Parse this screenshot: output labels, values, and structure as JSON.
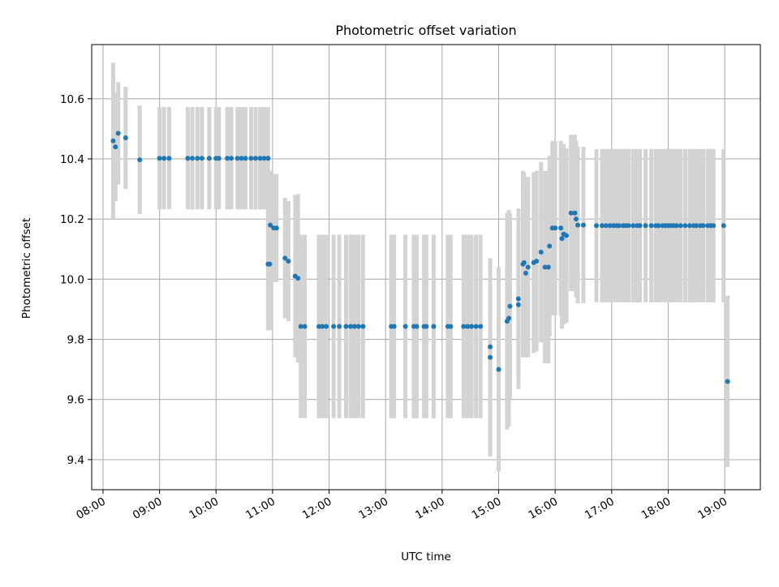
{
  "chart_data": {
    "type": "scatter",
    "title": "Photometric offset variation",
    "xlabel": "UTC time",
    "ylabel": "Photometric offset",
    "x_unit": "hours UTC",
    "xlim": [
      7.8,
      19.63
    ],
    "ylim": [
      9.3,
      10.78
    ],
    "x_ticks": [
      {
        "value": 8,
        "label": "08:00"
      },
      {
        "value": 9,
        "label": "09:00"
      },
      {
        "value": 10,
        "label": "10:00"
      },
      {
        "value": 11,
        "label": "11:00"
      },
      {
        "value": 12,
        "label": "12:00"
      },
      {
        "value": 13,
        "label": "13:00"
      },
      {
        "value": 14,
        "label": "14:00"
      },
      {
        "value": 15,
        "label": "15:00"
      },
      {
        "value": 16,
        "label": "16:00"
      },
      {
        "value": 17,
        "label": "17:00"
      },
      {
        "value": 18,
        "label": "18:00"
      },
      {
        "value": 19,
        "label": "19:00"
      }
    ],
    "y_ticks": [
      {
        "value": 9.4,
        "label": "9.4"
      },
      {
        "value": 9.6,
        "label": "9.6"
      },
      {
        "value": 9.8,
        "label": "9.8"
      },
      {
        "value": 10.0,
        "label": "10.0"
      },
      {
        "value": 10.2,
        "label": "10.2"
      },
      {
        "value": 10.4,
        "label": "10.4"
      },
      {
        "value": 10.6,
        "label": "10.6"
      }
    ],
    "grid": true,
    "marker_color": "#1f77b4",
    "errorbar_color": "#d3d3d3",
    "points": [
      {
        "x": 8.18,
        "y": 10.46,
        "err": 0.26
      },
      {
        "x": 8.22,
        "y": 10.44,
        "err": 0.18
      },
      {
        "x": 8.27,
        "y": 10.485,
        "err": 0.17
      },
      {
        "x": 8.4,
        "y": 10.47,
        "err": 0.17
      },
      {
        "x": 8.65,
        "y": 10.397,
        "err": 0.18
      },
      {
        "x": 9.0,
        "y": 10.402,
        "err": 0.17
      },
      {
        "x": 9.08,
        "y": 10.402,
        "err": 0.17
      },
      {
        "x": 9.17,
        "y": 10.402,
        "err": 0.17
      },
      {
        "x": 9.5,
        "y": 10.402,
        "err": 0.17
      },
      {
        "x": 9.58,
        "y": 10.402,
        "err": 0.17
      },
      {
        "x": 9.67,
        "y": 10.402,
        "err": 0.17
      },
      {
        "x": 9.75,
        "y": 10.402,
        "err": 0.17
      },
      {
        "x": 9.88,
        "y": 10.402,
        "err": 0.17
      },
      {
        "x": 10.0,
        "y": 10.402,
        "err": 0.17
      },
      {
        "x": 10.05,
        "y": 10.402,
        "err": 0.17
      },
      {
        "x": 10.2,
        "y": 10.402,
        "err": 0.17
      },
      {
        "x": 10.27,
        "y": 10.402,
        "err": 0.17
      },
      {
        "x": 10.38,
        "y": 10.402,
        "err": 0.17
      },
      {
        "x": 10.45,
        "y": 10.402,
        "err": 0.17
      },
      {
        "x": 10.52,
        "y": 10.402,
        "err": 0.17
      },
      {
        "x": 10.62,
        "y": 10.402,
        "err": 0.17
      },
      {
        "x": 10.7,
        "y": 10.402,
        "err": 0.17
      },
      {
        "x": 10.78,
        "y": 10.402,
        "err": 0.17
      },
      {
        "x": 10.85,
        "y": 10.402,
        "err": 0.17
      },
      {
        "x": 10.92,
        "y": 10.402,
        "err": 0.17
      },
      {
        "x": 10.92,
        "y": 10.05,
        "err": 0.22
      },
      {
        "x": 10.95,
        "y": 10.05,
        "err": 0.22
      },
      {
        "x": 10.96,
        "y": 10.18,
        "err": 0.18
      },
      {
        "x": 11.02,
        "y": 10.17,
        "err": 0.18
      },
      {
        "x": 11.07,
        "y": 10.17,
        "err": 0.18
      },
      {
        "x": 11.22,
        "y": 10.07,
        "err": 0.2
      },
      {
        "x": 11.28,
        "y": 10.06,
        "err": 0.2
      },
      {
        "x": 11.4,
        "y": 10.01,
        "err": 0.27
      },
      {
        "x": 11.45,
        "y": 10.003,
        "err": 0.28
      },
      {
        "x": 11.5,
        "y": 9.843,
        "err": 0.305
      },
      {
        "x": 11.57,
        "y": 9.843,
        "err": 0.305
      },
      {
        "x": 11.82,
        "y": 9.843,
        "err": 0.305
      },
      {
        "x": 11.88,
        "y": 9.843,
        "err": 0.305
      },
      {
        "x": 11.95,
        "y": 9.843,
        "err": 0.305
      },
      {
        "x": 12.08,
        "y": 9.843,
        "err": 0.305
      },
      {
        "x": 12.18,
        "y": 9.843,
        "err": 0.305
      },
      {
        "x": 12.3,
        "y": 9.843,
        "err": 0.305
      },
      {
        "x": 12.38,
        "y": 9.843,
        "err": 0.305
      },
      {
        "x": 12.45,
        "y": 9.843,
        "err": 0.305
      },
      {
        "x": 12.52,
        "y": 9.843,
        "err": 0.305
      },
      {
        "x": 12.6,
        "y": 9.843,
        "err": 0.305
      },
      {
        "x": 13.1,
        "y": 9.843,
        "err": 0.305
      },
      {
        "x": 13.15,
        "y": 9.843,
        "err": 0.305
      },
      {
        "x": 13.35,
        "y": 9.843,
        "err": 0.305
      },
      {
        "x": 13.5,
        "y": 9.843,
        "err": 0.305
      },
      {
        "x": 13.55,
        "y": 9.843,
        "err": 0.305
      },
      {
        "x": 13.68,
        "y": 9.843,
        "err": 0.305
      },
      {
        "x": 13.72,
        "y": 9.843,
        "err": 0.305
      },
      {
        "x": 13.85,
        "y": 9.843,
        "err": 0.305
      },
      {
        "x": 14.1,
        "y": 9.843,
        "err": 0.305
      },
      {
        "x": 14.15,
        "y": 9.843,
        "err": 0.305
      },
      {
        "x": 14.38,
        "y": 9.843,
        "err": 0.305
      },
      {
        "x": 14.45,
        "y": 9.843,
        "err": 0.305
      },
      {
        "x": 14.52,
        "y": 9.843,
        "err": 0.305
      },
      {
        "x": 14.6,
        "y": 9.843,
        "err": 0.305
      },
      {
        "x": 14.68,
        "y": 9.843,
        "err": 0.305
      },
      {
        "x": 14.85,
        "y": 9.775,
        "err": 0.215
      },
      {
        "x": 14.85,
        "y": 9.74,
        "err": 0.33
      },
      {
        "x": 15.0,
        "y": 9.7,
        "err": 0.34
      },
      {
        "x": 15.15,
        "y": 9.86,
        "err": 0.36
      },
      {
        "x": 15.18,
        "y": 9.87,
        "err": 0.36
      },
      {
        "x": 15.2,
        "y": 9.91,
        "err": 0.31
      },
      {
        "x": 15.35,
        "y": 9.935,
        "err": 0.3
      },
      {
        "x": 15.35,
        "y": 9.915,
        "err": 0.25
      },
      {
        "x": 15.43,
        "y": 10.05,
        "err": 0.31
      },
      {
        "x": 15.45,
        "y": 10.055,
        "err": 0.3
      },
      {
        "x": 15.48,
        "y": 10.02,
        "err": 0.28
      },
      {
        "x": 15.52,
        "y": 10.04,
        "err": 0.3
      },
      {
        "x": 15.62,
        "y": 10.055,
        "err": 0.3
      },
      {
        "x": 15.67,
        "y": 10.06,
        "err": 0.3
      },
      {
        "x": 15.75,
        "y": 10.09,
        "err": 0.3
      },
      {
        "x": 15.82,
        "y": 10.04,
        "err": 0.32
      },
      {
        "x": 15.88,
        "y": 10.04,
        "err": 0.32
      },
      {
        "x": 15.9,
        "y": 10.11,
        "err": 0.3
      },
      {
        "x": 15.95,
        "y": 10.17,
        "err": 0.29
      },
      {
        "x": 16.0,
        "y": 10.17,
        "err": 0.29
      },
      {
        "x": 16.1,
        "y": 10.17,
        "err": 0.29
      },
      {
        "x": 16.12,
        "y": 10.135,
        "err": 0.3
      },
      {
        "x": 16.15,
        "y": 10.15,
        "err": 0.3
      },
      {
        "x": 16.2,
        "y": 10.145,
        "err": 0.29
      },
      {
        "x": 16.28,
        "y": 10.22,
        "err": 0.26
      },
      {
        "x": 16.35,
        "y": 10.22,
        "err": 0.26
      },
      {
        "x": 16.37,
        "y": 10.2,
        "err": 0.26
      },
      {
        "x": 16.4,
        "y": 10.18,
        "err": 0.26
      },
      {
        "x": 16.5,
        "y": 10.18,
        "err": 0.26
      },
      {
        "x": 16.73,
        "y": 10.178,
        "err": 0.255
      },
      {
        "x": 16.83,
        "y": 10.178,
        "err": 0.255
      },
      {
        "x": 16.9,
        "y": 10.178,
        "err": 0.255
      },
      {
        "x": 16.97,
        "y": 10.178,
        "err": 0.255
      },
      {
        "x": 17.03,
        "y": 10.178,
        "err": 0.255
      },
      {
        "x": 17.08,
        "y": 10.178,
        "err": 0.255
      },
      {
        "x": 17.13,
        "y": 10.178,
        "err": 0.255
      },
      {
        "x": 17.2,
        "y": 10.178,
        "err": 0.255
      },
      {
        "x": 17.25,
        "y": 10.178,
        "err": 0.255
      },
      {
        "x": 17.3,
        "y": 10.178,
        "err": 0.255
      },
      {
        "x": 17.38,
        "y": 10.178,
        "err": 0.255
      },
      {
        "x": 17.45,
        "y": 10.178,
        "err": 0.255
      },
      {
        "x": 17.5,
        "y": 10.178,
        "err": 0.255
      },
      {
        "x": 17.6,
        "y": 10.178,
        "err": 0.255
      },
      {
        "x": 17.7,
        "y": 10.178,
        "err": 0.255
      },
      {
        "x": 17.78,
        "y": 10.178,
        "err": 0.255
      },
      {
        "x": 17.83,
        "y": 10.178,
        "err": 0.255
      },
      {
        "x": 17.9,
        "y": 10.178,
        "err": 0.255
      },
      {
        "x": 17.95,
        "y": 10.178,
        "err": 0.255
      },
      {
        "x": 18.0,
        "y": 10.178,
        "err": 0.255
      },
      {
        "x": 18.05,
        "y": 10.178,
        "err": 0.255
      },
      {
        "x": 18.1,
        "y": 10.178,
        "err": 0.255
      },
      {
        "x": 18.15,
        "y": 10.178,
        "err": 0.255
      },
      {
        "x": 18.22,
        "y": 10.178,
        "err": 0.255
      },
      {
        "x": 18.3,
        "y": 10.178,
        "err": 0.255
      },
      {
        "x": 18.38,
        "y": 10.178,
        "err": 0.255
      },
      {
        "x": 18.45,
        "y": 10.178,
        "err": 0.255
      },
      {
        "x": 18.5,
        "y": 10.178,
        "err": 0.255
      },
      {
        "x": 18.57,
        "y": 10.178,
        "err": 0.255
      },
      {
        "x": 18.62,
        "y": 10.178,
        "err": 0.255
      },
      {
        "x": 18.7,
        "y": 10.178,
        "err": 0.255
      },
      {
        "x": 18.75,
        "y": 10.178,
        "err": 0.255
      },
      {
        "x": 18.8,
        "y": 10.178,
        "err": 0.255
      },
      {
        "x": 18.98,
        "y": 10.178,
        "err": 0.255
      },
      {
        "x": 19.05,
        "y": 9.66,
        "err": 0.285
      }
    ]
  }
}
